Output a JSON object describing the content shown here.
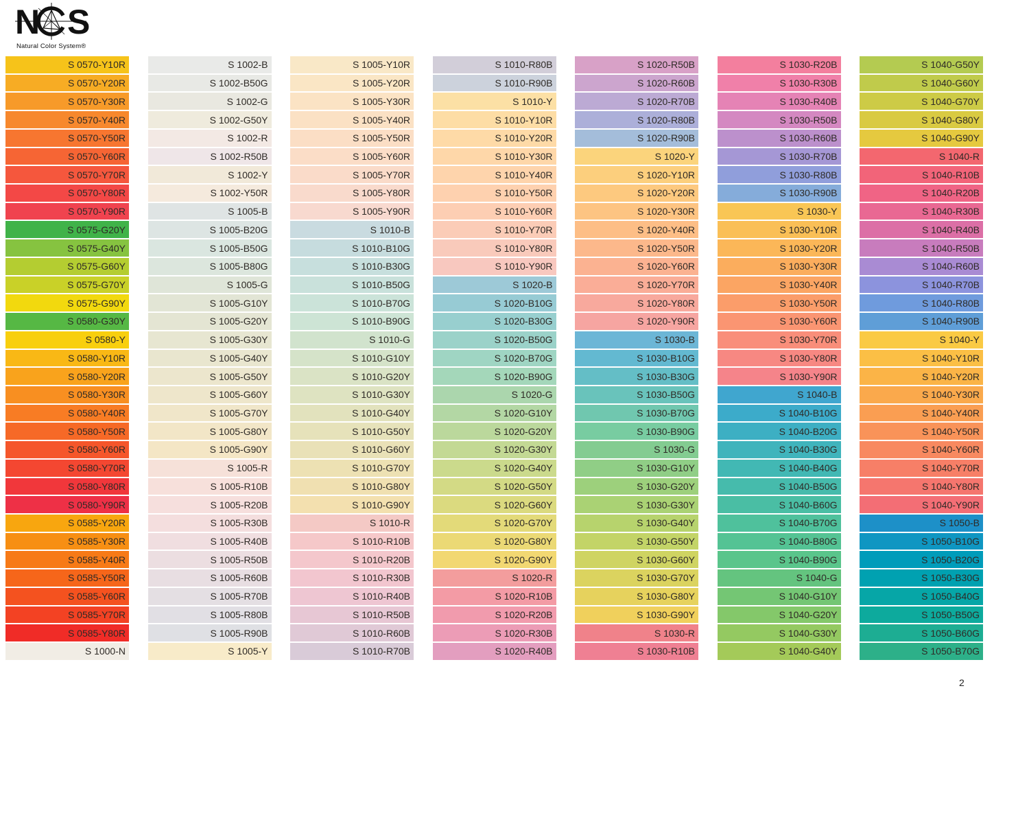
{
  "logo": {
    "letter_n": "N",
    "letter_s": "S",
    "subtitle": "Natural Color System®"
  },
  "page": {
    "number": "2"
  },
  "columns": [
    [
      [
        "S 0570-Y10R",
        "#F6C31A"
      ],
      [
        "S 0570-Y20R",
        "#F7AC24"
      ],
      [
        "S 0570-Y30R",
        "#F79A29"
      ],
      [
        "S 0570-Y40R",
        "#F7882D"
      ],
      [
        "S 0570-Y50R",
        "#F77630"
      ],
      [
        "S 0570-Y60R",
        "#F66534"
      ],
      [
        "S 0570-Y70R",
        "#F5573D"
      ],
      [
        "S 0570-Y80R",
        "#F34846"
      ],
      [
        "S 0570-Y90R",
        "#F0434F"
      ],
      [
        "S 0575-G20Y",
        "#40B349"
      ],
      [
        "S 0575-G40Y",
        "#86C340"
      ],
      [
        "S 0575-G60Y",
        "#B4CD31"
      ],
      [
        "S 0575-G70Y",
        "#C9D128"
      ],
      [
        "S 0575-G90Y",
        "#F2D90E"
      ],
      [
        "S 0580-G30Y",
        "#56B844"
      ],
      [
        "S 0580-Y",
        "#F8CF0E"
      ],
      [
        "S 0580-Y10R",
        "#F9B815"
      ],
      [
        "S 0580-Y20R",
        "#F9A31C"
      ],
      [
        "S 0580-Y30R",
        "#F88F21"
      ],
      [
        "S 0580-Y40R",
        "#F87C24"
      ],
      [
        "S 0580-Y50R",
        "#F66927"
      ],
      [
        "S 0580-Y60R",
        "#F5562B"
      ],
      [
        "S 0580-Y70R",
        "#F44731"
      ],
      [
        "S 0580-Y80R",
        "#F1373B"
      ],
      [
        "S 0580-Y90R",
        "#EE3046"
      ],
      [
        "S 0585-Y20R",
        "#F8A60F"
      ],
      [
        "S 0585-Y30R",
        "#F78F13"
      ],
      [
        "S 0585-Y40R",
        "#F77A17"
      ],
      [
        "S 0585-Y50R",
        "#F6661A"
      ],
      [
        "S 0585-Y60R",
        "#F4521F"
      ],
      [
        "S 0585-Y70R",
        "#F34223"
      ],
      [
        "S 0585-Y80R",
        "#F02C27"
      ],
      [
        "S 1000-N",
        "#F1EDE5"
      ]
    ],
    [
      [
        "S 1002-B",
        "#E9EAE8"
      ],
      [
        "S 1002-B50G",
        "#E8E9E5"
      ],
      [
        "S 1002-G",
        "#E9E8E0"
      ],
      [
        "S 1002-G50Y",
        "#EFEBDD"
      ],
      [
        "S 1002-R",
        "#F3E9E4"
      ],
      [
        "S 1002-R50B",
        "#EFE6E8"
      ],
      [
        "S 1002-Y",
        "#F1E9D9"
      ],
      [
        "S 1002-Y50R",
        "#F5EADD"
      ],
      [
        "S 1005-B",
        "#DFE4E4"
      ],
      [
        "S 1005-B20G",
        "#DDE5E3"
      ],
      [
        "S 1005-B50G",
        "#DAE6E0"
      ],
      [
        "S 1005-B80G",
        "#DCE6DD"
      ],
      [
        "S 1005-G",
        "#DFE5D8"
      ],
      [
        "S 1005-G10Y",
        "#E2E5D5"
      ],
      [
        "S 1005-G20Y",
        "#E4E5D3"
      ],
      [
        "S 1005-G30Y",
        "#E7E6D1"
      ],
      [
        "S 1005-G40Y",
        "#E9E6CF"
      ],
      [
        "S 1005-G50Y",
        "#ECE6CD"
      ],
      [
        "S 1005-G60Y",
        "#EEE6CB"
      ],
      [
        "S 1005-G70Y",
        "#F0E6C9"
      ],
      [
        "S 1005-G80Y",
        "#F2E6C7"
      ],
      [
        "S 1005-G90Y",
        "#F4E6C5"
      ],
      [
        "S 1005-R",
        "#F6E1D9"
      ],
      [
        "S 1005-R10B",
        "#F7E0DB"
      ],
      [
        "S 1005-R20B",
        "#F6DFDD"
      ],
      [
        "S 1005-R30B",
        "#F4DEDE"
      ],
      [
        "S 1005-R40B",
        "#F0DEE0"
      ],
      [
        "S 1005-R50B",
        "#ECDEE1"
      ],
      [
        "S 1005-R60B",
        "#E8DEE2"
      ],
      [
        "S 1005-R70B",
        "#E4DFE3"
      ],
      [
        "S 1005-R80B",
        "#E1DFE4"
      ],
      [
        "S 1005-R90B",
        "#DFE0E4"
      ],
      [
        "S 1005-Y",
        "#F8EBC9"
      ]
    ],
    [
      [
        "S 1005-Y10R",
        "#F9E8C7"
      ],
      [
        "S 1005-Y20R",
        "#FAE6C5"
      ],
      [
        "S 1005-Y30R",
        "#FBE3C4"
      ],
      [
        "S 1005-Y40R",
        "#FBE1C4"
      ],
      [
        "S 1005-Y50R",
        "#FBDEC5"
      ],
      [
        "S 1005-Y60R",
        "#FBDDC7"
      ],
      [
        "S 1005-Y70R",
        "#FADBC9"
      ],
      [
        "S 1005-Y80R",
        "#F9DACC"
      ],
      [
        "S 1005-Y90R",
        "#F8D9CF"
      ],
      [
        "S 1010-B",
        "#C9DBE0"
      ],
      [
        "S 1010-B10G",
        "#C6DCDE"
      ],
      [
        "S 1010-B30G",
        "#C7DFDD"
      ],
      [
        "S 1010-B50G",
        "#C9E1DB"
      ],
      [
        "S 1010-B70G",
        "#CBE3D9"
      ],
      [
        "S 1010-B90G",
        "#CDE4D5"
      ],
      [
        "S 1010-G",
        "#D1E3CD"
      ],
      [
        "S 1010-G10Y",
        "#D5E3C9"
      ],
      [
        "S 1010-G20Y",
        "#DAE3C5"
      ],
      [
        "S 1010-G30Y",
        "#DEE3C1"
      ],
      [
        "S 1010-G40Y",
        "#E2E2BD"
      ],
      [
        "S 1010-G50Y",
        "#E6E2BA"
      ],
      [
        "S 1010-G60Y",
        "#E9E1B7"
      ],
      [
        "S 1010-G70Y",
        "#EDE1B3"
      ],
      [
        "S 1010-G80Y",
        "#F0E0B1"
      ],
      [
        "S 1010-G90Y",
        "#F3E0AF"
      ],
      [
        "S 1010-R",
        "#F4C9C5"
      ],
      [
        "S 1010-R10B",
        "#F5C8C9"
      ],
      [
        "S 1010-R20B",
        "#F4C7CC"
      ],
      [
        "S 1010-R30B",
        "#F2C6CF"
      ],
      [
        "S 1010-R40B",
        "#EEC6D2"
      ],
      [
        "S 1010-R50B",
        "#E7C7D4"
      ],
      [
        "S 1010-R60B",
        "#E0C9D6"
      ],
      [
        "S 1010-R70B",
        "#D9CBD8"
      ]
    ],
    [
      [
        "S 1010-R80B",
        "#D2CED9"
      ],
      [
        "S 1010-R90B",
        "#CCD2DC"
      ],
      [
        "S 1010-Y",
        "#FCE0A5"
      ],
      [
        "S 1010-Y10R",
        "#FDDDA5"
      ],
      [
        "S 1010-Y20R",
        "#FEDAA7"
      ],
      [
        "S 1010-Y30R",
        "#FED7A9"
      ],
      [
        "S 1010-Y40R",
        "#FED4AC"
      ],
      [
        "S 1010-Y50R",
        "#FED1AF"
      ],
      [
        "S 1010-Y60R",
        "#FDCEB3"
      ],
      [
        "S 1010-Y70R",
        "#FBCCB7"
      ],
      [
        "S 1010-Y80R",
        "#F9CABB"
      ],
      [
        "S 1010-Y90R",
        "#F8C8BF"
      ],
      [
        "S 1020-B",
        "#9DC9D7"
      ],
      [
        "S 1020-B10G",
        "#97CBD4"
      ],
      [
        "S 1020-B30G",
        "#98CFCF"
      ],
      [
        "S 1020-B50G",
        "#9BD2C9"
      ],
      [
        "S 1020-B70G",
        "#9FD5C3"
      ],
      [
        "S 1020-B90G",
        "#A4D7BA"
      ],
      [
        "S 1020-G",
        "#ABD6AD"
      ],
      [
        "S 1020-G10Y",
        "#B3D7A4"
      ],
      [
        "S 1020-G20Y",
        "#BBD89C"
      ],
      [
        "S 1020-G30Y",
        "#C3D994"
      ],
      [
        "S 1020-G40Y",
        "#CBDA8C"
      ],
      [
        "S 1020-G50Y",
        "#D3DA85"
      ],
      [
        "S 1020-G60Y",
        "#DBDA7F"
      ],
      [
        "S 1020-G70Y",
        "#E3DA79"
      ],
      [
        "S 1020-G80Y",
        "#EBD975"
      ],
      [
        "S 1020-G90Y",
        "#F2D872"
      ],
      [
        "S 1020-R",
        "#F39D9D"
      ],
      [
        "S 1020-R10B",
        "#F39BA5"
      ],
      [
        "S 1020-R20B",
        "#F19BAD"
      ],
      [
        "S 1020-R30B",
        "#EC9CB6"
      ],
      [
        "S 1020-R40B",
        "#E39EBF"
      ]
    ],
    [
      [
        "S 1020-R50B",
        "#D8A1C7"
      ],
      [
        "S 1020-R60B",
        "#CCA5CE"
      ],
      [
        "S 1020-R70B",
        "#BCAAD4"
      ],
      [
        "S 1020-R80B",
        "#ACAFD9"
      ],
      [
        "S 1020-R90B",
        "#A4BDDA"
      ],
      [
        "S 1020-Y",
        "#FBD47C"
      ],
      [
        "S 1020-Y10R",
        "#FCCF7D"
      ],
      [
        "S 1020-Y20R",
        "#FDC97F"
      ],
      [
        "S 1020-Y30R",
        "#FDC482"
      ],
      [
        "S 1020-Y40R",
        "#FDBE86"
      ],
      [
        "S 1020-Y50R",
        "#FCB88B"
      ],
      [
        "S 1020-Y60R",
        "#FBB291"
      ],
      [
        "S 1020-Y70R",
        "#FAAD97"
      ],
      [
        "S 1020-Y80R",
        "#F8A99D"
      ],
      [
        "S 1020-Y90R",
        "#F6A5A1"
      ],
      [
        "S 1030-B",
        "#6CB6D6"
      ],
      [
        "S 1030-B10G",
        "#63B9D1"
      ],
      [
        "S 1030-B30G",
        "#64BEC6"
      ],
      [
        "S 1030-B50G",
        "#69C3BB"
      ],
      [
        "S 1030-B70G",
        "#70C7AF"
      ],
      [
        "S 1030-B90G",
        "#78CCA1"
      ],
      [
        "S 1030-G",
        "#83CC91"
      ],
      [
        "S 1030-G10Y",
        "#90CE86"
      ],
      [
        "S 1030-G20Y",
        "#9DD07C"
      ],
      [
        "S 1030-G30Y",
        "#AAD274"
      ],
      [
        "S 1030-G40Y",
        "#B7D36D"
      ],
      [
        "S 1030-G50Y",
        "#C3D467"
      ],
      [
        "S 1030-G60Y",
        "#CFD462"
      ],
      [
        "S 1030-G70Y",
        "#DBD35F"
      ],
      [
        "S 1030-G80Y",
        "#E6D25D"
      ],
      [
        "S 1030-G90Y",
        "#F0D05C"
      ],
      [
        "S 1030-R",
        "#F0828A"
      ],
      [
        "S 1030-R10B",
        "#EF8093"
      ]
    ],
    [
      [
        "S 1030-R20B",
        "#F37F9E"
      ],
      [
        "S 1030-R30B",
        "#F080A9"
      ],
      [
        "S 1030-R40B",
        "#E583B5"
      ],
      [
        "S 1030-R50B",
        "#D488C1"
      ],
      [
        "S 1030-R60B",
        "#BC90CC"
      ],
      [
        "S 1030-R70B",
        "#A597D5"
      ],
      [
        "S 1030-R80B",
        "#909EDB"
      ],
      [
        "S 1030-R90B",
        "#85ACDA"
      ],
      [
        "S 1030-Y",
        "#F9C655"
      ],
      [
        "S 1030-Y10R",
        "#FABF56"
      ],
      [
        "S 1030-Y20R",
        "#FBB758"
      ],
      [
        "S 1030-Y30R",
        "#FBAD5D"
      ],
      [
        "S 1030-Y40R",
        "#FBA563"
      ],
      [
        "S 1030-Y50R",
        "#FB9D6A"
      ],
      [
        "S 1030-Y60R",
        "#FA9572"
      ],
      [
        "S 1030-Y70R",
        "#F98E7A"
      ],
      [
        "S 1030-Y80R",
        "#F78882"
      ],
      [
        "S 1030-Y90R",
        "#F5848A"
      ],
      [
        "S 1040-B",
        "#40A6CF"
      ],
      [
        "S 1040-B10G",
        "#3CABCA"
      ],
      [
        "S 1040-B20G",
        "#3DAFC3"
      ],
      [
        "S 1040-B30G",
        "#40B4BC"
      ],
      [
        "S 1040-B40G",
        "#42B8B4"
      ],
      [
        "S 1040-B50G",
        "#46BBAC"
      ],
      [
        "S 1040-B60G",
        "#4ABEA4"
      ],
      [
        "S 1040-B70G",
        "#4FC19C"
      ],
      [
        "S 1040-B80G",
        "#54C394"
      ],
      [
        "S 1040-B90G",
        "#5AC58B"
      ],
      [
        "S 1040-G",
        "#64C47F"
      ],
      [
        "S 1040-G10Y",
        "#74C674"
      ],
      [
        "S 1040-G20Y",
        "#84C86A"
      ],
      [
        "S 1040-G30Y",
        "#94C961"
      ],
      [
        "S 1040-G40Y",
        "#A4CA59"
      ]
    ],
    [
      [
        "S 1040-G50Y",
        "#B4CB51"
      ],
      [
        "S 1040-G60Y",
        "#C0CB4B"
      ],
      [
        "S 1040-G70Y",
        "#CDCB46"
      ],
      [
        "S 1040-G80Y",
        "#D9CA42"
      ],
      [
        "S 1040-G90Y",
        "#E5C93F"
      ],
      [
        "S 1040-R",
        "#F3676F"
      ],
      [
        "S 1040-R10B",
        "#F26479"
      ],
      [
        "S 1040-R20B",
        "#F06485"
      ],
      [
        "S 1040-R30B",
        "#E96893"
      ],
      [
        "S 1040-R40B",
        "#DC6FA6"
      ],
      [
        "S 1040-R50B",
        "#C87CBD"
      ],
      [
        "S 1040-R60B",
        "#A98BD3"
      ],
      [
        "S 1040-R70B",
        "#8C93DD"
      ],
      [
        "S 1040-R80B",
        "#6F9BDD"
      ],
      [
        "S 1040-R90B",
        "#5F9ED7"
      ],
      [
        "S 1040-Y",
        "#FACA44"
      ],
      [
        "S 1040-Y10R",
        "#FBBF45"
      ],
      [
        "S 1040-Y20R",
        "#FBB447"
      ],
      [
        "S 1040-Y30R",
        "#FAA94C"
      ],
      [
        "S 1040-Y40R",
        "#FA9E52"
      ],
      [
        "S 1040-Y50R",
        "#F99359"
      ],
      [
        "S 1040-Y60R",
        "#F88960"
      ],
      [
        "S 1040-Y70R",
        "#F77F67"
      ],
      [
        "S 1040-Y80R",
        "#F5766E"
      ],
      [
        "S 1040-Y90R",
        "#F36E75"
      ],
      [
        "S 1050-B",
        "#1D90C8"
      ],
      [
        "S 1050-B10G",
        "#0F96C2"
      ],
      [
        "S 1050-B20G",
        "#009CBA"
      ],
      [
        "S 1050-B30G",
        "#00A1B1"
      ],
      [
        "S 1050-B40G",
        "#06A6A7"
      ],
      [
        "S 1050-B50G",
        "#0DAA9D"
      ],
      [
        "S 1050-B60G",
        "#1DAD93"
      ],
      [
        "S 1050-B70G",
        "#2DB089"
      ]
    ]
  ]
}
